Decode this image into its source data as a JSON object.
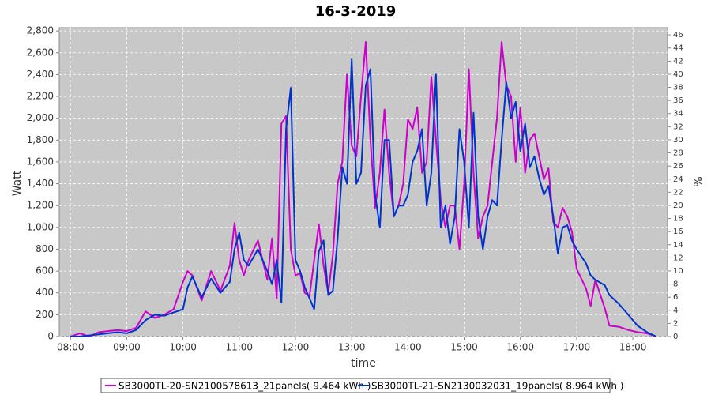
{
  "chart_data": {
    "type": "line",
    "title": "16-3-2019",
    "x_label": "time",
    "y_label": "Watt",
    "y2_label": "%",
    "x": [
      "08:00",
      "08:10",
      "08:20",
      "08:30",
      "08:40",
      "08:50",
      "09:00",
      "09:10",
      "09:20",
      "09:30",
      "09:40",
      "09:50",
      "10:00",
      "10:05",
      "10:10",
      "10:20",
      "10:30",
      "10:40",
      "10:50",
      "10:55",
      "11:00",
      "11:05",
      "11:10",
      "11:20",
      "11:30",
      "11:35",
      "11:40",
      "11:45",
      "11:50",
      "11:55",
      "12:00",
      "12:05",
      "12:10",
      "12:15",
      "12:20",
      "12:25",
      "12:30",
      "12:35",
      "12:40",
      "12:45",
      "12:50",
      "12:55",
      "13:00",
      "13:05",
      "13:10",
      "13:15",
      "13:20",
      "13:25",
      "13:30",
      "13:35",
      "13:40",
      "13:45",
      "13:50",
      "13:55",
      "14:00",
      "14:05",
      "14:10",
      "14:15",
      "14:20",
      "14:25",
      "14:30",
      "14:35",
      "14:40",
      "14:45",
      "14:50",
      "14:55",
      "15:00",
      "15:05",
      "15:10",
      "15:15",
      "15:20",
      "15:25",
      "15:30",
      "15:35",
      "15:40",
      "15:45",
      "15:50",
      "15:55",
      "16:00",
      "16:05",
      "16:10",
      "16:15",
      "16:20",
      "16:25",
      "16:30",
      "16:35",
      "16:40",
      "16:45",
      "16:50",
      "16:55",
      "17:00",
      "17:10",
      "17:15",
      "17:20",
      "17:30",
      "17:35",
      "17:45",
      "17:55",
      "18:05",
      "18:15",
      "18:25"
    ],
    "series": [
      {
        "name": "SB3000TL-20-SN2100578613_21panels( 9.464 kWh )",
        "color": "#cc00cc",
        "values": [
          0,
          30,
          0,
          40,
          50,
          60,
          50,
          80,
          230,
          170,
          200,
          250,
          500,
          600,
          560,
          330,
          600,
          420,
          650,
          1040,
          700,
          560,
          700,
          880,
          520,
          900,
          350,
          1950,
          2020,
          800,
          560,
          580,
          400,
          370,
          700,
          1030,
          650,
          400,
          750,
          1400,
          1600,
          2400,
          1750,
          1650,
          2200,
          2700,
          1800,
          1180,
          1500,
          2080,
          1500,
          1100,
          1200,
          1400,
          1990,
          1900,
          2100,
          1500,
          1600,
          2380,
          1800,
          1250,
          1000,
          1200,
          1200,
          800,
          1400,
          2450,
          1500,
          900,
          1100,
          1200,
          1600,
          2000,
          2700,
          2300,
          2200,
          1600,
          2100,
          1500,
          1800,
          1860,
          1650,
          1440,
          1540,
          1050,
          1000,
          1180,
          1100,
          960,
          620,
          440,
          280,
          520,
          260,
          100,
          90,
          60,
          40,
          30,
          0
        ]
      },
      {
        "name": "SB3000TL-21-SN2130032031_19panels( 8.964 kWh )",
        "color": "#0033cc",
        "values": [
          0,
          0,
          10,
          20,
          30,
          40,
          30,
          60,
          150,
          200,
          190,
          220,
          250,
          450,
          550,
          360,
          530,
          400,
          500,
          800,
          950,
          700,
          650,
          800,
          600,
          480,
          700,
          310,
          1900,
          2280,
          700,
          600,
          450,
          350,
          250,
          780,
          880,
          380,
          420,
          900,
          1550,
          1400,
          2540,
          1400,
          1500,
          2300,
          2450,
          1300,
          1000,
          1800,
          1800,
          1100,
          1200,
          1200,
          1300,
          1600,
          1700,
          1900,
          1200,
          1500,
          2400,
          1000,
          1200,
          850,
          1100,
          1900,
          1600,
          1000,
          2050,
          1100,
          800,
          1100,
          1250,
          1200,
          1800,
          2330,
          2000,
          2150,
          1700,
          1950,
          1550,
          1650,
          1450,
          1300,
          1380,
          1100,
          760,
          1000,
          1020,
          880,
          800,
          670,
          560,
          520,
          470,
          380,
          300,
          200,
          100,
          40,
          0
        ]
      }
    ],
    "xlim": [
      "07:48",
      "18:37"
    ],
    "xticks": [
      "08:00",
      "09:00",
      "10:00",
      "11:00",
      "12:00",
      "13:00",
      "14:00",
      "15:00",
      "16:00",
      "17:00",
      "18:00"
    ],
    "ylim": [
      0,
      2830
    ],
    "yticks": [
      0,
      200,
      400,
      600,
      800,
      {
        "value": 1000,
        "label": "1,000"
      },
      {
        "value": 1200,
        "label": "1,200"
      },
      {
        "value": 1400,
        "label": "1,400"
      },
      {
        "value": 1600,
        "label": "1,600"
      },
      {
        "value": 1800,
        "label": "1,800"
      },
      {
        "value": 2000,
        "label": "2,000"
      },
      {
        "value": 2200,
        "label": "2,200"
      },
      {
        "value": 2400,
        "label": "2,400"
      },
      {
        "value": 2600,
        "label": "2,600"
      },
      {
        "value": 2800,
        "label": "2,800"
      }
    ],
    "y2lim": [
      0,
      47.1
    ],
    "y2ticks": [
      0,
      2,
      4,
      6,
      8,
      10,
      12,
      14,
      16,
      18,
      20,
      22,
      24,
      26,
      28,
      30,
      32,
      34,
      36,
      38,
      40,
      42,
      44,
      46
    ],
    "grid": true,
    "legend": "bottom"
  }
}
